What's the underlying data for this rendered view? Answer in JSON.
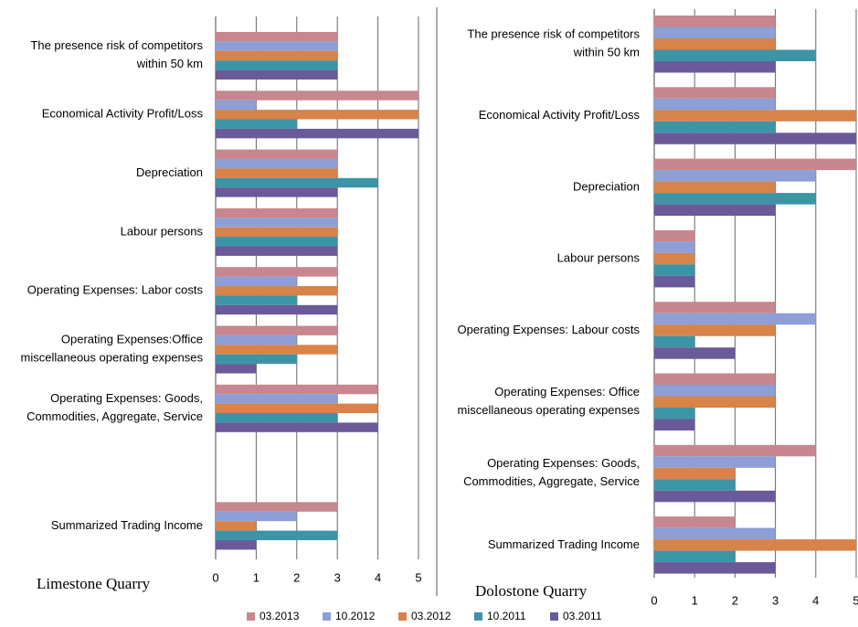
{
  "chart_data": [
    {
      "type": "bar",
      "orientation": "horizontal",
      "title": "Limestone Quarry",
      "categories": [
        "The presence risk of competitors\nwithin 50 km",
        "Economical Activity Profit/Loss",
        "Depreciation",
        "Labour persons",
        "Operating Expenses: Labor costs",
        "Operating Expenses:Office\nmiscellaneous operating expenses",
        "Operating Expenses: Goods,\nCommodities, Aggregate, Service",
        null,
        "Summarized Trading Income"
      ],
      "series": [
        {
          "name": "03.2013",
          "color": "#c8868e",
          "values": [
            3,
            5,
            3,
            3,
            3,
            3,
            4,
            null,
            3
          ]
        },
        {
          "name": "10.2012",
          "color": "#8d9fd6",
          "values": [
            3,
            1,
            3,
            3,
            2,
            2,
            3,
            null,
            2
          ]
        },
        {
          "name": "03.2012",
          "color": "#d8834a",
          "values": [
            3,
            5,
            3,
            3,
            3,
            3,
            4,
            null,
            1
          ]
        },
        {
          "name": "10.2011",
          "color": "#3c95a6",
          "values": [
            3,
            2,
            4,
            3,
            2,
            2,
            3,
            null,
            3
          ]
        },
        {
          "name": "03.2011",
          "color": "#6a5a9a",
          "values": [
            3,
            5,
            3,
            3,
            3,
            1,
            4,
            null,
            1
          ]
        }
      ],
      "xlim": [
        0,
        5
      ],
      "xticks": [
        0,
        1,
        2,
        3,
        4,
        5
      ],
      "grid": true
    },
    {
      "type": "bar",
      "orientation": "horizontal",
      "title": "Dolostone Quarry",
      "categories": [
        "The presence risk of competitors\nwithin 50 km",
        "Economical Activity Profit/Loss",
        "Depreciation",
        "Labour persons",
        "Operating Expenses: Labour costs",
        "Operating Expenses: Office\nmiscellaneous operating expenses",
        "Operating Expenses: Goods,\nCommodities, Aggregate, Service",
        "Summarized Trading Income"
      ],
      "series": [
        {
          "color": "#c8868e",
          "values": [
            3,
            3,
            5,
            1,
            3,
            3,
            4,
            2
          ]
        },
        {
          "color": "#8d9fd6",
          "values": [
            3,
            3,
            4,
            1,
            4,
            3,
            3,
            3
          ]
        },
        {
          "color": "#d8834a",
          "values": [
            3,
            5,
            3,
            1,
            3,
            3,
            2,
            5
          ]
        },
        {
          "color": "#3c95a6",
          "values": [
            4,
            3,
            4,
            1,
            1,
            1,
            2,
            2
          ]
        },
        {
          "color": "#6a5a9a",
          "values": [
            3,
            5,
            3,
            1,
            2,
            1,
            3,
            3
          ]
        }
      ],
      "xlim": [
        0,
        5
      ],
      "xticks": [
        0,
        1,
        2,
        3,
        4,
        5
      ],
      "grid": true
    }
  ]
}
